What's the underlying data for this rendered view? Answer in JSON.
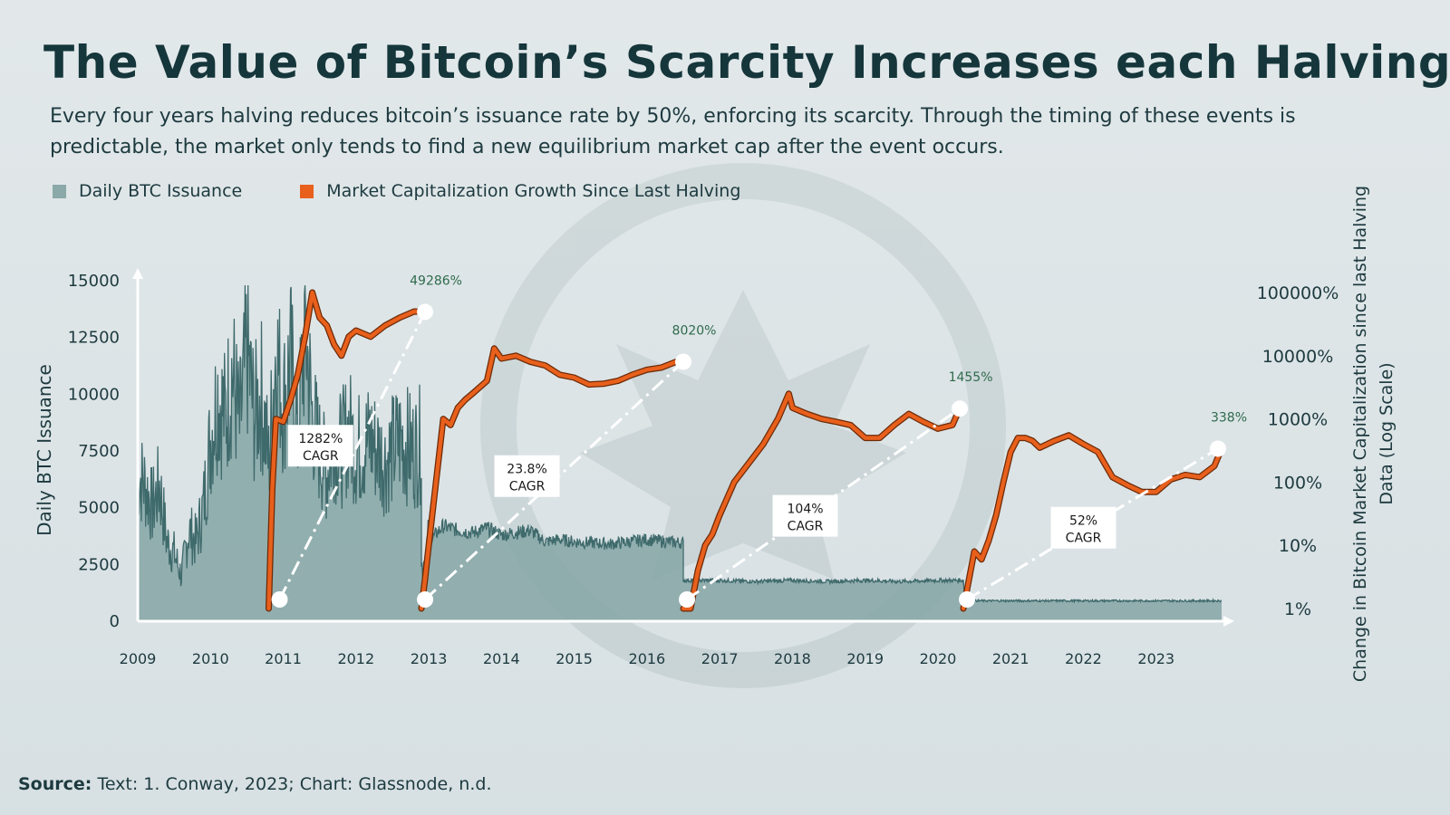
{
  "title": "The Value of Bitcoin’s Scarcity Increases each Halving",
  "subtitle": "Every four years halving reduces bitcoin’s issuance rate by 50%, enforcing its scarcity. Through the timing of these events is predictable, the market only tends to find a new equilibrium market cap after the event occurs.",
  "source": {
    "label": "Source:",
    "text": "Text: 1. Conway, 2023; Chart: Glassnode, n.d."
  },
  "colors": {
    "issuance": "#8aa9a8",
    "issuance_line": "#3f6a6c",
    "market_cap": "#e8601c",
    "market_cap_edge": "#6b2a08",
    "text": "#15363b",
    "cagr_green": "#2e6b4c"
  },
  "chart_data": {
    "type": "area",
    "xlim": [
      2009,
      2023.9
    ],
    "x_ticks": [
      "2009",
      "2010",
      "2011",
      "2012",
      "2013",
      "2014",
      "2015",
      "2016",
      "2017",
      "2018",
      "2019",
      "2020",
      "2021",
      "2022",
      "2023"
    ],
    "left_axis": {
      "label": "Daily BTC Issuance",
      "ticks": [
        "15000",
        "12500",
        "10000",
        "7500",
        "5000",
        "2500",
        "0"
      ],
      "ylim": [
        0,
        15000
      ]
    },
    "right_axis": {
      "label": "Change in Bitcoin Market Capitalization since last Halving Data (Log Scale)",
      "ticks": [
        "100000%",
        "10000%",
        "1000%",
        "100%",
        "10%",
        "1%"
      ],
      "scale": "log",
      "ylim": [
        1,
        100000
      ]
    },
    "legend": {
      "placement": "top-left"
    },
    "series": [
      {
        "name": "Daily BTC Issuance",
        "x": [
          2009.0,
          2009.1,
          2009.2,
          2009.3,
          2009.4,
          2009.5,
          2009.6,
          2009.7,
          2009.8,
          2009.9,
          2010.0,
          2010.1,
          2010.2,
          2010.3,
          2010.4,
          2010.5,
          2010.6,
          2010.7,
          2010.8,
          2010.9,
          2011.0,
          2011.1,
          2011.2,
          2011.3,
          2011.4,
          2011.5,
          2011.6,
          2011.7,
          2011.8,
          2011.9,
          2012.0,
          2012.2,
          2012.4,
          2012.6,
          2012.8,
          2012.9,
          2012.9,
          2013.0,
          2013.2,
          2013.4,
          2013.6,
          2013.8,
          2014.0,
          2014.2,
          2014.4,
          2014.6,
          2014.8,
          2015.0,
          2015.5,
          2016.0,
          2016.3,
          2016.5,
          2016.5,
          2017.0,
          2017.5,
          2018.0,
          2018.5,
          2019.0,
          2019.5,
          2020.0,
          2020.35,
          2020.37,
          2021.0,
          2022.0,
          2023.0,
          2023.9
        ],
        "values": [
          6500,
          6000,
          5000,
          6000,
          3500,
          3000,
          2000,
          4000,
          3500,
          5000,
          8000,
          10000,
          9000,
          11000,
          8500,
          12000,
          9000,
          10000,
          7000,
          12000,
          9500,
          11500,
          8000,
          13000,
          9000,
          7500,
          6500,
          8000,
          7500,
          8500,
          7500,
          8000,
          7000,
          8000,
          7500,
          7800,
          2300,
          3500,
          4200,
          4000,
          3900,
          4100,
          3800,
          3900,
          4000,
          3500,
          3600,
          3500,
          3400,
          3600,
          3500,
          3450,
          1800,
          1800,
          1750,
          1800,
          1750,
          1800,
          1750,
          1800,
          1800,
          900,
          900,
          900,
          900,
          900
        ]
      },
      {
        "name": "Market Capitalization Growth Since Last Halving",
        "segments": [
          {
            "x": [
              2010.8,
              2010.85,
              2010.9,
              2011.0,
              2011.1,
              2011.2,
              2011.3,
              2011.4,
              2011.5,
              2011.6,
              2011.7,
              2011.8,
              2011.9,
              2012.0,
              2012.2,
              2012.4,
              2012.6,
              2012.8,
              2012.95
            ],
            "values": [
              1,
              80,
              1000,
              900,
              2000,
              5000,
              20000,
              100000,
              40000,
              30000,
              15000,
              10000,
              20000,
              25000,
              20000,
              30000,
              40000,
              50000,
              49286
            ]
          },
          {
            "x": [
              2012.9,
              2012.95,
              2013.0,
              2013.1,
              2013.2,
              2013.3,
              2013.4,
              2013.5,
              2013.6,
              2013.8,
              2013.9,
              2014.0,
              2014.2,
              2014.4,
              2014.6,
              2014.8,
              2015.0,
              2015.2,
              2015.4,
              2015.6,
              2015.8,
              2016.0,
              2016.2,
              2016.4
            ],
            "values": [
              1,
              3,
              10,
              100,
              1000,
              800,
              1500,
              2000,
              2500,
              4000,
              13000,
              9000,
              10000,
              8000,
              7000,
              5000,
              4500,
              3500,
              3600,
              4000,
              5000,
              6000,
              6500,
              8020
            ]
          },
          {
            "x": [
              2016.5,
              2016.6,
              2016.7,
              2016.8,
              2016.9,
              2017.0,
              2017.2,
              2017.4,
              2017.6,
              2017.8,
              2017.95,
              2018.0,
              2018.2,
              2018.4,
              2018.6,
              2018.8,
              2019.0,
              2019.2,
              2019.4,
              2019.6,
              2019.8,
              2020.0,
              2020.2,
              2020.3
            ],
            "values": [
              1,
              1,
              4,
              10,
              15,
              30,
              100,
              200,
              400,
              1000,
              2500,
              1500,
              1200,
              1000,
              900,
              800,
              500,
              500,
              800,
              1200,
              900,
              700,
              800,
              1455
            ]
          },
          {
            "x": [
              2020.35,
              2020.4,
              2020.5,
              2020.6,
              2020.7,
              2020.8,
              2020.9,
              2021.0,
              2021.1,
              2021.2,
              2021.3,
              2021.4,
              2021.6,
              2021.8,
              2022.0,
              2022.2,
              2022.4,
              2022.6,
              2022.8,
              2023.0,
              2023.2,
              2023.4,
              2023.6,
              2023.8,
              2023.9
            ],
            "values": [
              1,
              2,
              8,
              6,
              12,
              30,
              100,
              300,
              500,
              500,
              450,
              350,
              450,
              550,
              400,
              300,
              120,
              90,
              70,
              70,
              110,
              130,
              120,
              180,
              338
            ]
          }
        ]
      }
    ],
    "halving_trendlines": [
      {
        "x": [
          2010.95,
          2012.95
        ],
        "values": [
          1,
          49286
        ],
        "end_label": "49286%",
        "cagr_label": [
          "1282%",
          "CAGR"
        ]
      },
      {
        "x": [
          2012.95,
          2016.5
        ],
        "values": [
          1,
          8020
        ],
        "end_label": "8020%",
        "cagr_label": [
          "23.8%",
          "CAGR"
        ]
      },
      {
        "x": [
          2016.55,
          2020.3
        ],
        "values": [
          1,
          1455
        ],
        "end_label": "1455%",
        "cagr_label": [
          "104%",
          "CAGR"
        ]
      },
      {
        "x": [
          2020.4,
          2023.85
        ],
        "values": [
          1,
          338
        ],
        "end_label": "338%",
        "cagr_label": [
          "52%",
          "CAGR"
        ]
      }
    ]
  }
}
